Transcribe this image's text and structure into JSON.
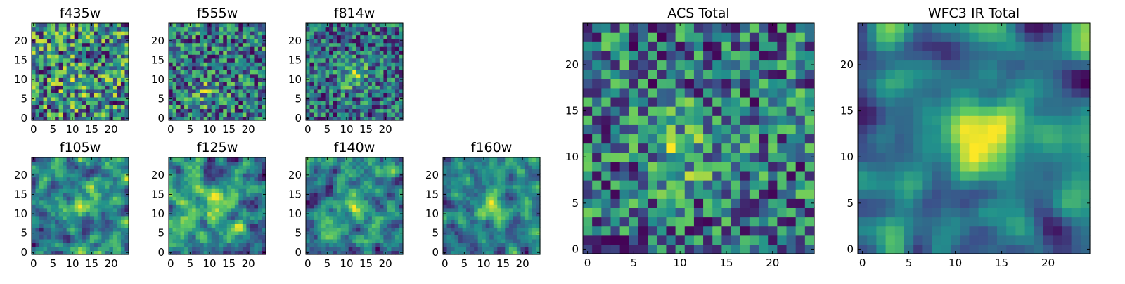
{
  "colormap": {
    "name": "viridis",
    "stops": [
      "#440154",
      "#3b528b",
      "#21918c",
      "#5ec962",
      "#fde725"
    ]
  },
  "chart_data": [
    {
      "type": "heatmap",
      "title": "f435w",
      "grid_size": 25,
      "xlim": [
        0,
        24
      ],
      "ylim": [
        0,
        24
      ],
      "xticks": [
        0,
        5,
        10,
        15,
        20
      ],
      "yticks": [
        0,
        5,
        10,
        15,
        20
      ],
      "values": "25x25 pixel image; noisy intensity field, faint signal",
      "seed": 11,
      "blob": {
        "x": 11,
        "y": 8,
        "strength": 0.1
      },
      "smooth": 0
    },
    {
      "type": "heatmap",
      "title": "f555w",
      "grid_size": 25,
      "xlim": [
        0,
        24
      ],
      "ylim": [
        0,
        24
      ],
      "xticks": [
        0,
        5,
        10,
        15,
        20
      ],
      "yticks": [
        0,
        5,
        10,
        15,
        20
      ],
      "values": "25x25 pixel image; noisy, slight brightening near center",
      "seed": 23,
      "blob": {
        "x": 9,
        "y": 7,
        "strength": 0.22
      },
      "smooth": 0
    },
    {
      "type": "heatmap",
      "title": "f814w",
      "grid_size": 25,
      "xlim": [
        0,
        24
      ],
      "ylim": [
        0,
        24
      ],
      "xticks": [
        0,
        5,
        10,
        15,
        20
      ],
      "yticks": [
        0,
        5,
        10,
        15,
        20
      ],
      "values": "25x25 pixel image; bright spot near center",
      "seed": 37,
      "blob": {
        "x": 12,
        "y": 11,
        "strength": 0.4
      },
      "smooth": 0
    },
    {
      "type": "heatmap",
      "title": "f105w",
      "grid_size": 25,
      "xlim": [
        0,
        24
      ],
      "ylim": [
        0,
        24
      ],
      "xticks": [
        0,
        5,
        10,
        15,
        20
      ],
      "yticks": [
        0,
        5,
        10,
        15,
        20
      ],
      "values": "25x25 pixel image; smoother field, bright region near center",
      "seed": 41,
      "blob": {
        "x": 13,
        "y": 13,
        "strength": 0.35
      },
      "smooth": 1
    },
    {
      "type": "heatmap",
      "title": "f125w",
      "grid_size": 25,
      "xlim": [
        0,
        24
      ],
      "ylim": [
        0,
        24
      ],
      "xticks": [
        0,
        5,
        10,
        15,
        20
      ],
      "yticks": [
        0,
        5,
        10,
        15,
        20
      ],
      "values": "25x25 pixel image; smoother field",
      "seed": 53,
      "blob": {
        "x": 12,
        "y": 12,
        "strength": 0.3
      },
      "smooth": 1
    },
    {
      "type": "heatmap",
      "title": "f140w",
      "grid_size": 25,
      "xlim": [
        0,
        24
      ],
      "ylim": [
        0,
        24
      ],
      "xticks": [
        0,
        5,
        10,
        15,
        20
      ],
      "yticks": [
        0,
        5,
        10,
        15,
        20
      ],
      "values": "25x25 pixel image; smoother field",
      "seed": 67,
      "blob": {
        "x": 11,
        "y": 13,
        "strength": 0.3
      },
      "smooth": 1
    },
    {
      "type": "heatmap",
      "title": "f160w",
      "grid_size": 25,
      "xlim": [
        0,
        24
      ],
      "ylim": [
        0,
        24
      ],
      "xticks": [
        0,
        5,
        10,
        15,
        20
      ],
      "yticks": [
        0,
        5,
        10,
        15,
        20
      ],
      "values": "25x25 pixel image; bright region near center",
      "seed": 79,
      "blob": {
        "x": 12,
        "y": 12,
        "strength": 0.45
      },
      "smooth": 1
    },
    {
      "type": "heatmap",
      "title": "ACS Total",
      "grid_size": 25,
      "xlim": [
        0,
        24
      ],
      "ylim": [
        0,
        24
      ],
      "xticks": [
        0,
        5,
        10,
        15,
        20
      ],
      "yticks": [
        0,
        5,
        10,
        15,
        20
      ],
      "values": "25x25 pixel image; noisy, modest bright region around x≈8-12, y≈8-13",
      "seed": 97,
      "blob": {
        "x": 10,
        "y": 11,
        "strength": 0.3
      },
      "smooth": 0
    },
    {
      "type": "heatmap",
      "title": "WFC3 IR Total",
      "grid_size": 25,
      "xlim": [
        0,
        24
      ],
      "ylim": [
        0,
        24
      ],
      "xticks": [
        0,
        5,
        10,
        15,
        20
      ],
      "yticks": [
        0,
        5,
        10,
        15,
        20
      ],
      "values": "25x25 pixel image; smooth field with bright source around x≈12-16, y≈10-15",
      "seed": 113,
      "blob": {
        "x": 13,
        "y": 12,
        "strength": 0.55
      },
      "smooth": 2
    }
  ]
}
